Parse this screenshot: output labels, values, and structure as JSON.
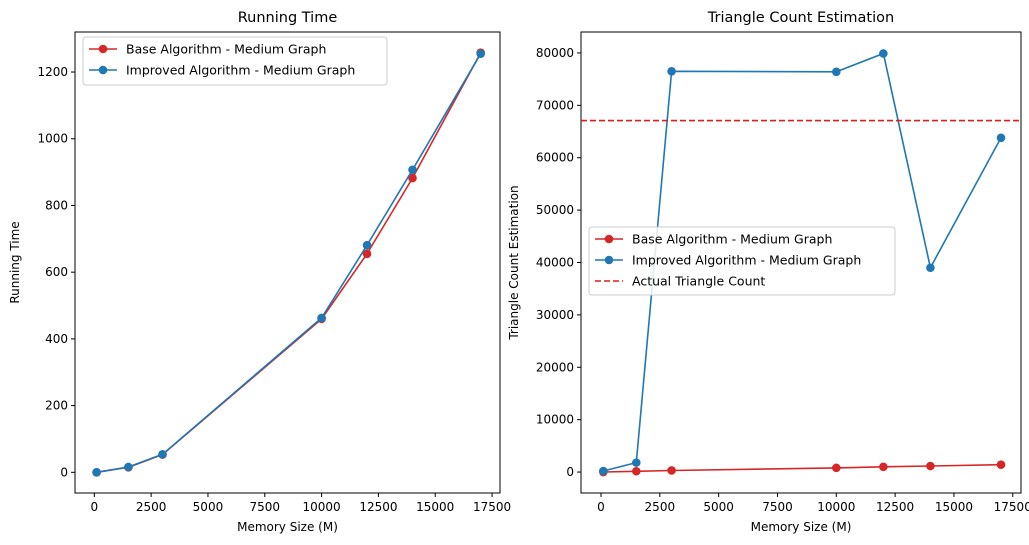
{
  "chart_data": [
    {
      "type": "line",
      "title": "Running Time",
      "xlabel": "Memory Size (M)",
      "ylabel": "Running Time",
      "xlim": [
        -850,
        17850
      ],
      "ylim": [
        -62,
        1320
      ],
      "xticks": [
        0,
        2500,
        5000,
        7500,
        10000,
        12500,
        15000,
        17500
      ],
      "xtick_labels": [
        "0",
        "2500",
        "5000",
        "7500",
        "10000",
        "12500",
        "15000",
        "17500"
      ],
      "yticks": [
        0,
        200,
        400,
        600,
        800,
        1000,
        1200
      ],
      "ytick_labels": [
        "0",
        "200",
        "400",
        "600",
        "800",
        "1000",
        "1200"
      ],
      "grid": false,
      "legend_position": "upper-left",
      "series": [
        {
          "name": "Base Algorithm - Medium Graph",
          "color": "#d62728",
          "linestyle": "solid",
          "marker": "circle",
          "x": [
            100,
            1500,
            3000,
            10000,
            12000,
            14000,
            17000
          ],
          "y": [
            0,
            15,
            53,
            460,
            655,
            882,
            1258
          ]
        },
        {
          "name": "Improved Algorithm - Medium Graph",
          "color": "#1f77b4",
          "linestyle": "solid",
          "marker": "circle",
          "x": [
            100,
            1500,
            3000,
            10000,
            12000,
            14000,
            17000
          ],
          "y": [
            0,
            16,
            54,
            463,
            681,
            907,
            1255
          ]
        }
      ]
    },
    {
      "type": "line",
      "title": "Triangle Count Estimation",
      "xlabel": "Memory Size (M)",
      "ylabel": "Triangle Count Estimation",
      "xlim": [
        -850,
        17850
      ],
      "ylim": [
        -4000,
        84000
      ],
      "xticks": [
        0,
        2500,
        5000,
        7500,
        10000,
        12500,
        15000,
        17500
      ],
      "xtick_labels": [
        "0",
        "2500",
        "5000",
        "7500",
        "10000",
        "12500",
        "15000",
        "17500"
      ],
      "yticks": [
        0,
        10000,
        20000,
        30000,
        40000,
        50000,
        60000,
        70000,
        80000
      ],
      "ytick_labels": [
        "0",
        "10000",
        "20000",
        "30000",
        "40000",
        "50000",
        "60000",
        "70000",
        "80000"
      ],
      "grid": false,
      "legend_position": "center-left",
      "series": [
        {
          "name": "Base Algorithm - Medium Graph",
          "color": "#d62728",
          "linestyle": "solid",
          "marker": "circle",
          "x": [
            100,
            1500,
            3000,
            10000,
            12000,
            14000,
            17000
          ],
          "y": [
            0,
            150,
            300,
            800,
            1000,
            1150,
            1400
          ]
        },
        {
          "name": "Improved Algorithm - Medium Graph",
          "color": "#1f77b4",
          "linestyle": "solid",
          "marker": "circle",
          "x": [
            100,
            1500,
            3000,
            10000,
            12000,
            14000,
            17000
          ],
          "y": [
            200,
            1800,
            76500,
            76400,
            79900,
            39000,
            63800
          ]
        },
        {
          "name": "Actual Triangle Count",
          "color": "#e31a1c",
          "linestyle": "dashed",
          "marker": "none",
          "hline": 67100
        }
      ]
    }
  ]
}
